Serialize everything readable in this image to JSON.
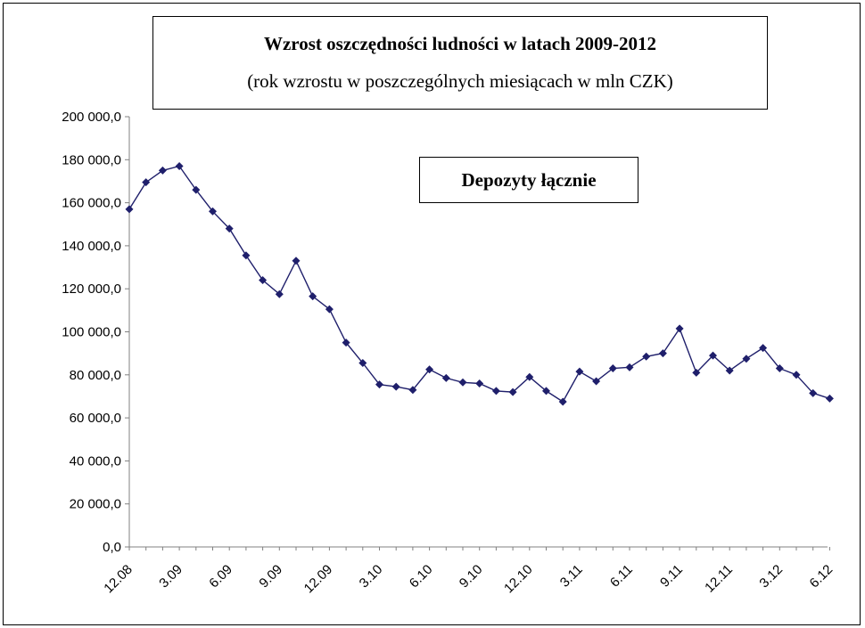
{
  "chart_data": {
    "type": "line",
    "title": "Wzrost oszczędności ludności w latach 2009-2012",
    "subtitle": "(rok wzrostu w poszczególnych miesiącach w mln CZK)",
    "legend_label": "Depozyty łącznie",
    "legend_placement": "top-center",
    "grid": false,
    "ylim": [
      0,
      200000
    ],
    "y_ticks": [
      "0,0",
      "20 000,0",
      "40 000,0",
      "60 000,0",
      "80 000,0",
      "100 000,0",
      "120 000,0",
      "140 000,0",
      "160 000,0",
      "180 000,0",
      "200 000,0"
    ],
    "x_tick_labels": [
      "12.08",
      "3.09",
      "6.09",
      "9.09",
      "12.09",
      "3.10",
      "6.10",
      "9.10",
      "12.10",
      "3.11",
      "6.11",
      "9.11",
      "12.11",
      "3.12",
      "6.12"
    ],
    "line_color": "#1f1f6b",
    "series": [
      {
        "name": "Depozyty łącznie",
        "values": [
          157000,
          169500,
          175000,
          177000,
          166000,
          156000,
          148000,
          135500,
          124000,
          117500,
          133000,
          116500,
          110500,
          95000,
          85500,
          75500,
          74500,
          73000,
          82500,
          78500,
          76500,
          76000,
          72500,
          72000,
          79000,
          72500,
          67500,
          81500,
          77000,
          83000,
          83500,
          88500,
          90000,
          101500,
          81000,
          89000,
          82000,
          87500,
          92500,
          83000,
          80000,
          71500,
          69000
        ]
      }
    ]
  }
}
